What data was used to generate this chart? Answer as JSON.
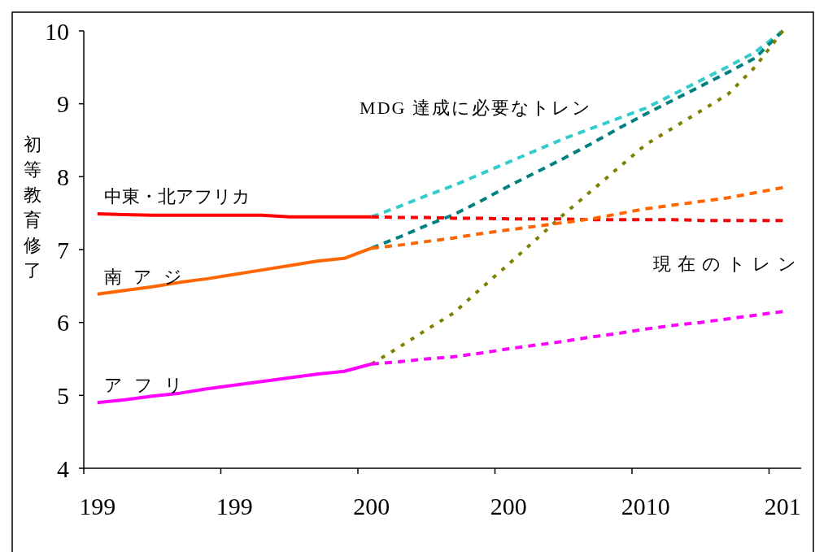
{
  "chart_data": {
    "type": "line",
    "ylabel": "初等教育修了",
    "categories": [
      "199",
      null,
      null,
      null,
      null,
      "199",
      null,
      null,
      null,
      null,
      "200",
      null,
      null,
      null,
      null,
      "200",
      null,
      null,
      null,
      null,
      "2010",
      null,
      null,
      null,
      null,
      "201"
    ],
    "ylim": [
      4,
      10
    ],
    "yticks": [
      4,
      5,
      6,
      7,
      8,
      9,
      10
    ],
    "grid": false,
    "legend": false,
    "marker": "none",
    "series": [
      {
        "name": "中東・北アフリカ",
        "color": "#ff0000",
        "line_style": "solid",
        "values": [
          7.49,
          7.48,
          7.47,
          7.47,
          7.47,
          7.47,
          7.47,
          7.45,
          7.45,
          7.45,
          7.45,
          null,
          null,
          null,
          null,
          null,
          null,
          null,
          null,
          null,
          null,
          null,
          null,
          null,
          null,
          null
        ]
      },
      {
        "name": "南アジ",
        "color": "#ff6600",
        "line_style": "solid",
        "values": [
          6.39,
          6.44,
          6.49,
          6.55,
          6.6,
          6.66,
          6.72,
          6.78,
          6.84,
          6.88,
          7.02,
          null,
          null,
          null,
          null,
          null,
          null,
          null,
          null,
          null,
          null,
          null,
          null,
          null,
          null,
          null
        ]
      },
      {
        "name": "アフリ",
        "color": "#ff00ff",
        "line_style": "solid",
        "values": [
          4.9,
          4.94,
          4.99,
          5.03,
          5.09,
          5.14,
          5.19,
          5.24,
          5.29,
          5.33,
          5.43,
          null,
          null,
          null,
          null,
          null,
          null,
          null,
          null,
          null,
          null,
          null,
          null,
          null,
          null,
          null
        ]
      },
      {
        "color": "#33cccc",
        "line_style": "dashed",
        "values": [
          null,
          null,
          null,
          null,
          null,
          null,
          null,
          null,
          null,
          null,
          7.45,
          7.59,
          7.74,
          7.88,
          8.04,
          8.2,
          8.36,
          8.52,
          8.66,
          8.8,
          8.94,
          9.13,
          9.32,
          9.51,
          9.71,
          10
        ]
      },
      {
        "color": "#008080",
        "line_style": "dashed",
        "values": [
          null,
          null,
          null,
          null,
          null,
          null,
          null,
          null,
          null,
          null,
          7.02,
          7.17,
          7.33,
          7.48,
          7.67,
          7.87,
          8.06,
          8.25,
          8.45,
          8.66,
          8.86,
          9.05,
          9.24,
          9.43,
          9.63,
          10
        ]
      },
      {
        "color": "#808000",
        "line_style": "dotted",
        "values": [
          null,
          null,
          null,
          null,
          null,
          null,
          null,
          null,
          null,
          null,
          5.43,
          5.66,
          5.9,
          6.13,
          6.47,
          6.8,
          7.14,
          7.48,
          7.8,
          8.12,
          8.44,
          8.67,
          8.9,
          9.13,
          9.51,
          10
        ]
      },
      {
        "color": "#ff0000",
        "line_style": "dashed",
        "values": [
          null,
          null,
          null,
          null,
          null,
          null,
          null,
          null,
          null,
          null,
          7.45,
          7.44,
          7.44,
          7.43,
          7.43,
          7.42,
          7.42,
          7.42,
          7.41,
          7.41,
          7.41,
          7.41,
          7.4,
          7.4,
          7.4,
          7.4
        ]
      },
      {
        "color": "#ff6600",
        "line_style": "dashed",
        "values": [
          null,
          null,
          null,
          null,
          null,
          null,
          null,
          null,
          null,
          null,
          7.02,
          7.06,
          7.11,
          7.16,
          7.22,
          7.27,
          7.32,
          7.37,
          7.42,
          7.49,
          7.56,
          7.61,
          7.66,
          7.71,
          7.78,
          7.85
        ]
      },
      {
        "color": "#ff00ff",
        "line_style": "dashed",
        "values": [
          null,
          null,
          null,
          null,
          null,
          null,
          null,
          null,
          null,
          null,
          5.43,
          5.46,
          5.5,
          5.53,
          5.58,
          5.64,
          5.69,
          5.74,
          5.8,
          5.85,
          5.91,
          5.96,
          6,
          6.05,
          6.1,
          6.15
        ]
      }
    ],
    "annotations": [
      "MDG 達成に必要なトレン",
      "現在のトレン"
    ]
  }
}
